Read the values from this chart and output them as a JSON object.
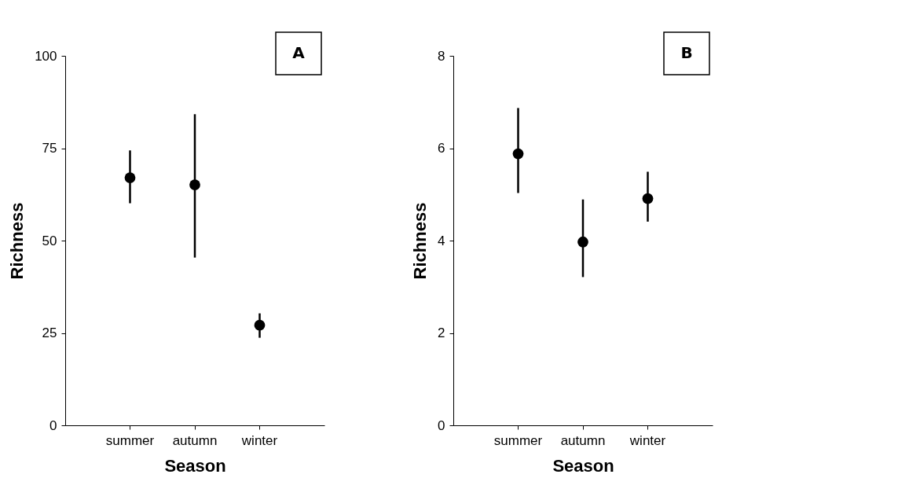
{
  "chart_data": [
    {
      "type": "scatter",
      "categories": [
        "summer",
        "autumn",
        "winter"
      ],
      "xlabel": "Season",
      "ylabel": "Richness",
      "ylim": [
        0,
        100
      ],
      "yticks": [
        0,
        25,
        50,
        75,
        100
      ],
      "marker": "circle",
      "grid": false,
      "annotations": [
        "A"
      ],
      "series": [
        {
          "color": "#000000",
          "values": [
            67.0,
            65.1,
            27.1
          ],
          "errors": [
            [
              60.1,
              74.4
            ],
            [
              45.4,
              84.2
            ],
            [
              23.7,
              30.3
            ]
          ]
        }
      ]
    },
    {
      "type": "scatter",
      "categories": [
        "summer",
        "autumn",
        "winter"
      ],
      "xlabel": "Season",
      "ylabel": "Richness",
      "ylim": [
        0,
        8
      ],
      "yticks": [
        0,
        2,
        4,
        6,
        8
      ],
      "marker": "circle",
      "grid": false,
      "annotations": [
        "B"
      ],
      "series": [
        {
          "color": "#000000",
          "values": [
            5.88,
            3.97,
            4.91
          ],
          "errors": [
            [
              5.03,
              6.87
            ],
            [
              3.21,
              4.89
            ],
            [
              4.41,
              5.49
            ]
          ]
        }
      ]
    }
  ]
}
